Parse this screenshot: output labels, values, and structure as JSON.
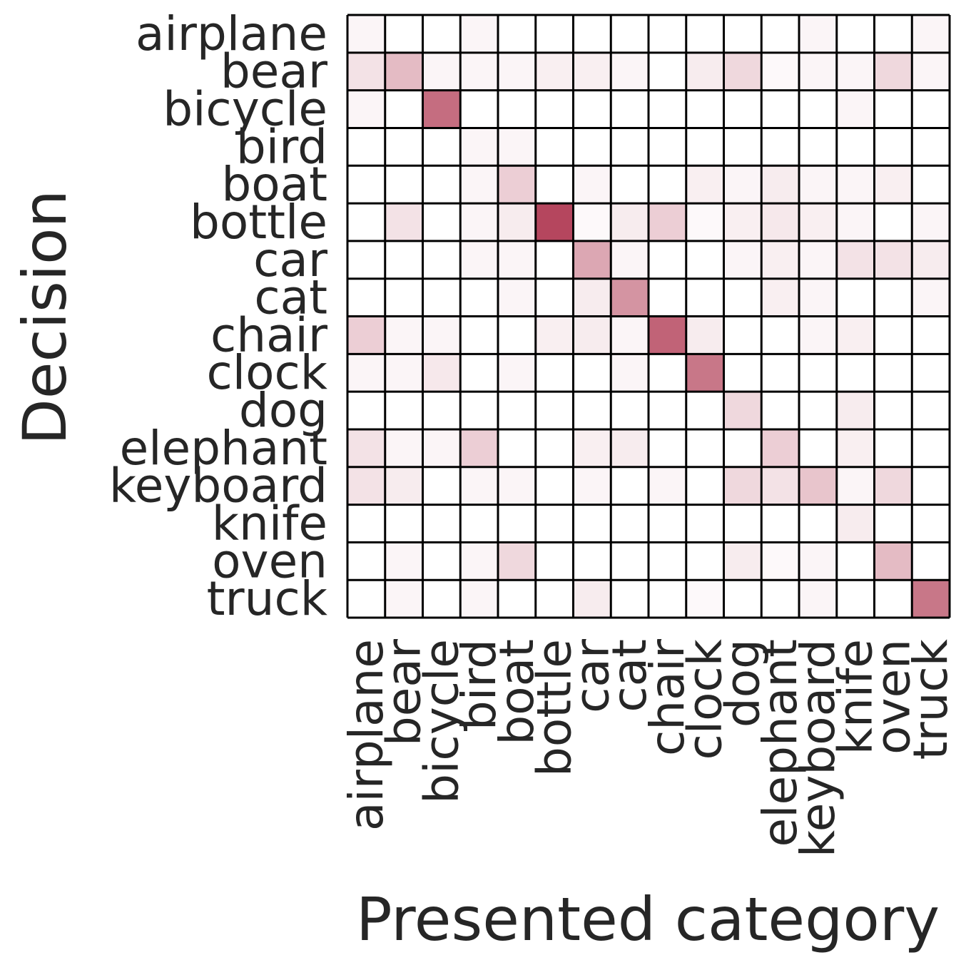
{
  "chart_data": {
    "type": "heatmap",
    "xlabel": "Presented category",
    "ylabel": "Decision",
    "x_categories": [
      "airplane",
      "bear",
      "bicycle",
      "bird",
      "boat",
      "bottle",
      "car",
      "cat",
      "chair",
      "clock",
      "dog",
      "elephant",
      "keyboard",
      "knife",
      "oven",
      "truck"
    ],
    "y_categories": [
      "airplane",
      "bear",
      "bicycle",
      "bird",
      "boat",
      "bottle",
      "car",
      "cat",
      "chair",
      "clock",
      "dog",
      "elephant",
      "keyboard",
      "knife",
      "oven",
      "truck"
    ],
    "value_range": [
      0,
      1
    ],
    "values": [
      [
        0.05,
        0,
        0,
        0.05,
        0,
        0,
        0,
        0,
        0,
        0,
        0,
        0,
        0.05,
        0,
        0,
        0.05
      ],
      [
        0.15,
        0.35,
        0.05,
        0.05,
        0.05,
        0.08,
        0.08,
        0.05,
        0,
        0.1,
        0.2,
        0.03,
        0.05,
        0.05,
        0.2,
        0.05
      ],
      [
        0.05,
        0,
        0.75,
        0,
        0,
        0,
        0,
        0,
        0,
        0,
        0,
        0,
        0,
        0.05,
        0,
        0
      ],
      [
        0,
        0,
        0,
        0.05,
        0.05,
        0,
        0,
        0,
        0,
        0,
        0,
        0,
        0,
        0,
        0,
        0
      ],
      [
        0,
        0,
        0,
        0.05,
        0.25,
        0,
        0.05,
        0,
        0,
        0.08,
        0.05,
        0.1,
        0.05,
        0.05,
        0.08,
        0
      ],
      [
        0,
        0.15,
        0,
        0.05,
        0.1,
        0.95,
        0.03,
        0.1,
        0.25,
        0.03,
        0.08,
        0.12,
        0.08,
        0.05,
        0,
        0.05
      ],
      [
        0,
        0,
        0,
        0.05,
        0.05,
        0,
        0.45,
        0.05,
        0,
        0,
        0.05,
        0.08,
        0.05,
        0.15,
        0.15,
        0.1
      ],
      [
        0,
        0,
        0,
        0,
        0.05,
        0,
        0.1,
        0.55,
        0,
        0,
        0,
        0.08,
        0.05,
        0,
        0,
        0.05
      ],
      [
        0.25,
        0.05,
        0.05,
        0,
        0,
        0.08,
        0.1,
        0.05,
        0.8,
        0.1,
        0,
        0,
        0.05,
        0.08,
        0,
        0
      ],
      [
        0.05,
        0.05,
        0.12,
        0,
        0.05,
        0,
        0,
        0.05,
        0,
        0.7,
        0,
        0,
        0,
        0,
        0,
        0
      ],
      [
        0,
        0,
        0,
        0,
        0,
        0,
        0,
        0,
        0,
        0,
        0.2,
        0,
        0,
        0.1,
        0,
        0
      ],
      [
        0.15,
        0.05,
        0.05,
        0.25,
        0,
        0,
        0.08,
        0.1,
        0,
        0,
        0,
        0.25,
        0,
        0.08,
        0,
        0
      ],
      [
        0.15,
        0.1,
        0,
        0.05,
        0.05,
        0,
        0.05,
        0,
        0.05,
        0,
        0.2,
        0.15,
        0.3,
        0.05,
        0.2,
        0
      ],
      [
        0,
        0,
        0,
        0,
        0,
        0,
        0,
        0,
        0,
        0,
        0,
        0,
        0,
        0.1,
        0,
        0
      ],
      [
        0,
        0.05,
        0,
        0.05,
        0.2,
        0,
        0,
        0,
        0,
        0,
        0.1,
        0.03,
        0.05,
        0,
        0.35,
        0
      ],
      [
        0,
        0.05,
        0,
        0.05,
        0,
        0,
        0.1,
        0,
        0,
        0.03,
        0,
        0,
        0.05,
        0,
        0,
        0.7
      ]
    ],
    "colors": {
      "low": "#ffffff",
      "high": "#b13c55",
      "grid": "#000000",
      "text": "#262626"
    },
    "grid": true
  }
}
